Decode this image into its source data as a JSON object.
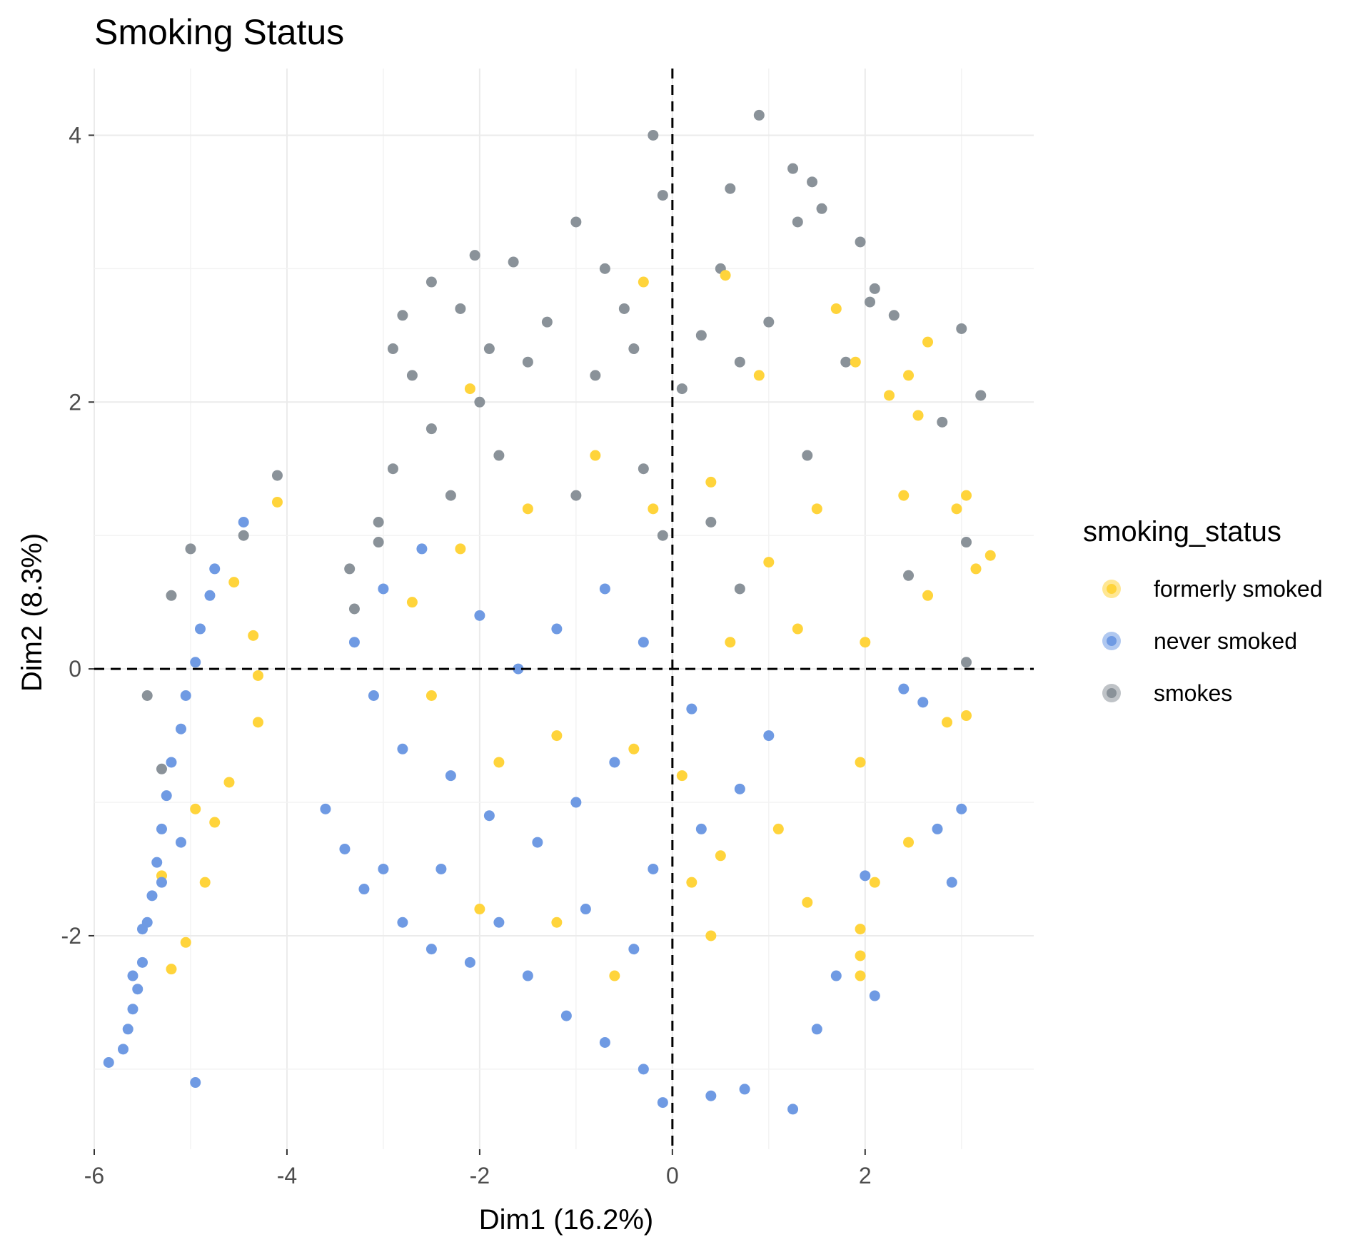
{
  "chart_data": {
    "type": "scatter",
    "title": "Smoking Status",
    "xlabel": "Dim1 (16.2%)",
    "ylabel": "Dim2 (8.3%)",
    "xlim": [
      -6.0,
      3.75
    ],
    "ylim": [
      -3.6,
      4.5
    ],
    "xticks": [
      -6,
      -4,
      -2,
      0,
      2
    ],
    "yticks": [
      -2,
      0,
      2,
      4
    ],
    "grid": true,
    "reference_lines": {
      "x": 0,
      "y": 0,
      "style": "dashed"
    },
    "legend": {
      "title": "smoking_status",
      "placement": "right",
      "entries": [
        {
          "label": "formerly smoked",
          "color": "#FFD43B"
        },
        {
          "label": "never smoked",
          "color": "#6F9AE3"
        },
        {
          "label": "smokes",
          "color": "#8A9299"
        }
      ]
    },
    "series": [
      {
        "name": "smokes",
        "color": "#8A9299",
        "points": [
          [
            -4.1,
            1.45
          ],
          [
            -4.45,
            1.0
          ],
          [
            -5.0,
            0.9
          ],
          [
            -5.2,
            0.55
          ],
          [
            -5.45,
            -0.2
          ],
          [
            -5.3,
            -0.75
          ],
          [
            0.9,
            4.15
          ],
          [
            -0.2,
            4.0
          ],
          [
            1.25,
            3.75
          ],
          [
            1.45,
            3.65
          ],
          [
            0.6,
            3.6
          ],
          [
            -0.1,
            3.55
          ],
          [
            1.55,
            3.45
          ],
          [
            -1.0,
            3.35
          ],
          [
            1.3,
            3.35
          ],
          [
            1.95,
            3.2
          ],
          [
            -2.05,
            3.1
          ],
          [
            -1.65,
            3.05
          ],
          [
            -2.5,
            2.9
          ],
          [
            2.1,
            2.85
          ],
          [
            2.05,
            2.75
          ],
          [
            -2.8,
            2.65
          ],
          [
            2.3,
            2.65
          ],
          [
            3.0,
            2.55
          ],
          [
            -2.9,
            2.4
          ],
          [
            3.2,
            2.05
          ],
          [
            2.8,
            1.85
          ],
          [
            3.05,
            0.95
          ],
          [
            3.05,
            0.05
          ],
          [
            2.45,
            0.7
          ],
          [
            -3.35,
            0.75
          ],
          [
            -3.3,
            0.45
          ],
          [
            -3.05,
            1.1
          ],
          [
            -3.05,
            0.95
          ],
          [
            -2.9,
            1.5
          ],
          [
            -2.7,
            2.2
          ],
          [
            -1.3,
            2.6
          ],
          [
            -0.5,
            2.7
          ],
          [
            0.3,
            2.5
          ],
          [
            0.5,
            3.0
          ],
          [
            -1.5,
            2.3
          ],
          [
            -2.0,
            2.0
          ],
          [
            -2.5,
            1.8
          ],
          [
            -0.8,
            2.2
          ],
          [
            0.1,
            2.1
          ],
          [
            0.7,
            2.3
          ],
          [
            1.0,
            2.6
          ],
          [
            -1.8,
            1.6
          ],
          [
            -0.3,
            1.5
          ],
          [
            -2.3,
            1.3
          ],
          [
            -1.0,
            1.3
          ],
          [
            0.4,
            1.1
          ],
          [
            -0.1,
            1.0
          ],
          [
            0.7,
            0.6
          ],
          [
            1.4,
            1.6
          ],
          [
            1.8,
            2.3
          ],
          [
            -2.2,
            2.7
          ],
          [
            -1.9,
            2.4
          ],
          [
            -0.7,
            3.0
          ],
          [
            -0.4,
            2.4
          ]
        ]
      },
      {
        "name": "formerly smoked",
        "color": "#FFD43B",
        "points": [
          [
            -4.1,
            1.25
          ],
          [
            -4.55,
            0.65
          ],
          [
            -4.35,
            0.25
          ],
          [
            -4.3,
            -0.05
          ],
          [
            -4.3,
            -0.4
          ],
          [
            -4.6,
            -0.85
          ],
          [
            -4.75,
            -1.15
          ],
          [
            -4.85,
            -1.6
          ],
          [
            -5.05,
            -2.05
          ],
          [
            -5.2,
            -2.25
          ],
          [
            -5.3,
            -1.55
          ],
          [
            -4.95,
            -1.05
          ],
          [
            3.3,
            0.85
          ],
          [
            3.05,
            1.3
          ],
          [
            3.15,
            0.75
          ],
          [
            2.95,
            1.2
          ],
          [
            3.05,
            -0.35
          ],
          [
            2.85,
            -0.4
          ],
          [
            2.65,
            0.55
          ],
          [
            2.55,
            1.9
          ],
          [
            2.65,
            2.45
          ],
          [
            2.45,
            2.2
          ],
          [
            2.25,
            2.05
          ],
          [
            2.4,
            1.3
          ],
          [
            1.9,
            2.3
          ],
          [
            2.0,
            0.2
          ],
          [
            1.95,
            -0.7
          ],
          [
            2.1,
            -1.6
          ],
          [
            2.45,
            -1.3
          ],
          [
            1.95,
            -1.95
          ],
          [
            1.95,
            -2.15
          ],
          [
            1.95,
            -2.3
          ],
          [
            1.4,
            -1.75
          ],
          [
            1.1,
            -1.2
          ],
          [
            0.5,
            -1.4
          ],
          [
            0.2,
            -1.6
          ],
          [
            0.1,
            -0.8
          ],
          [
            -0.4,
            -0.6
          ],
          [
            0.6,
            0.2
          ],
          [
            1.0,
            0.8
          ],
          [
            1.5,
            1.2
          ],
          [
            1.3,
            0.3
          ],
          [
            0.4,
            1.4
          ],
          [
            -0.2,
            1.2
          ],
          [
            -0.8,
            1.6
          ],
          [
            -1.5,
            1.2
          ],
          [
            -2.2,
            0.9
          ],
          [
            -2.7,
            0.5
          ],
          [
            -2.5,
            -0.2
          ],
          [
            -1.8,
            -0.7
          ],
          [
            -1.2,
            -0.5
          ],
          [
            -2.1,
            2.1
          ],
          [
            -0.3,
            2.9
          ],
          [
            0.55,
            2.95
          ],
          [
            0.9,
            2.2
          ],
          [
            1.7,
            2.7
          ],
          [
            -2.0,
            -1.8
          ],
          [
            -1.2,
            -1.9
          ],
          [
            -0.6,
            -2.3
          ],
          [
            0.4,
            -2.0
          ]
        ]
      },
      {
        "name": "never smoked",
        "color": "#6F9AE3",
        "points": [
          [
            -5.85,
            -2.95
          ],
          [
            -5.7,
            -2.85
          ],
          [
            -5.65,
            -2.7
          ],
          [
            -5.6,
            -2.55
          ],
          [
            -5.55,
            -2.4
          ],
          [
            -5.5,
            -2.2
          ],
          [
            -5.5,
            -1.95
          ],
          [
            -5.4,
            -1.7
          ],
          [
            -5.35,
            -1.45
          ],
          [
            -5.3,
            -1.2
          ],
          [
            -5.25,
            -0.95
          ],
          [
            -5.2,
            -0.7
          ],
          [
            -5.1,
            -0.45
          ],
          [
            -5.05,
            -0.2
          ],
          [
            -4.95,
            0.05
          ],
          [
            -4.9,
            0.3
          ],
          [
            -4.8,
            0.55
          ],
          [
            -4.75,
            0.75
          ],
          [
            -4.45,
            1.1
          ],
          [
            -4.95,
            -3.1
          ],
          [
            -5.6,
            -2.3
          ],
          [
            -5.45,
            -1.9
          ],
          [
            -5.3,
            -1.6
          ],
          [
            -5.1,
            -1.3
          ],
          [
            -3.6,
            -1.05
          ],
          [
            -3.4,
            -1.35
          ],
          [
            -3.2,
            -1.65
          ],
          [
            -3.0,
            -1.5
          ],
          [
            -2.8,
            -1.9
          ],
          [
            -2.5,
            -2.1
          ],
          [
            -2.1,
            -2.2
          ],
          [
            -1.5,
            -2.3
          ],
          [
            -1.1,
            -2.6
          ],
          [
            -0.7,
            -2.8
          ],
          [
            -0.3,
            -3.0
          ],
          [
            -0.1,
            -3.25
          ],
          [
            0.4,
            -3.2
          ],
          [
            0.75,
            -3.15
          ],
          [
            1.25,
            -3.3
          ],
          [
            1.5,
            -2.7
          ],
          [
            1.7,
            -2.3
          ],
          [
            2.1,
            -2.45
          ],
          [
            2.9,
            -1.6
          ],
          [
            3.0,
            -1.05
          ],
          [
            2.75,
            -1.2
          ],
          [
            2.0,
            -1.55
          ],
          [
            2.6,
            -0.25
          ],
          [
            2.4,
            -0.15
          ],
          [
            -3.3,
            0.2
          ],
          [
            -3.1,
            -0.2
          ],
          [
            -2.8,
            -0.6
          ],
          [
            -2.3,
            -0.8
          ],
          [
            -1.9,
            -1.1
          ],
          [
            -1.4,
            -1.3
          ],
          [
            -1.0,
            -1.0
          ],
          [
            -0.6,
            -0.7
          ],
          [
            -0.2,
            -1.5
          ],
          [
            0.3,
            -1.2
          ],
          [
            0.7,
            -0.9
          ],
          [
            1.0,
            -0.5
          ],
          [
            -3.0,
            0.6
          ],
          [
            -2.6,
            0.9
          ],
          [
            -2.0,
            0.4
          ],
          [
            -1.6,
            0.0
          ],
          [
            -1.2,
            0.3
          ],
          [
            -0.7,
            0.6
          ],
          [
            -0.3,
            0.2
          ],
          [
            0.2,
            -0.3
          ],
          [
            -2.4,
            -1.5
          ],
          [
            -1.8,
            -1.9
          ],
          [
            -0.9,
            -1.8
          ],
          [
            -0.4,
            -2.1
          ]
        ]
      }
    ]
  }
}
